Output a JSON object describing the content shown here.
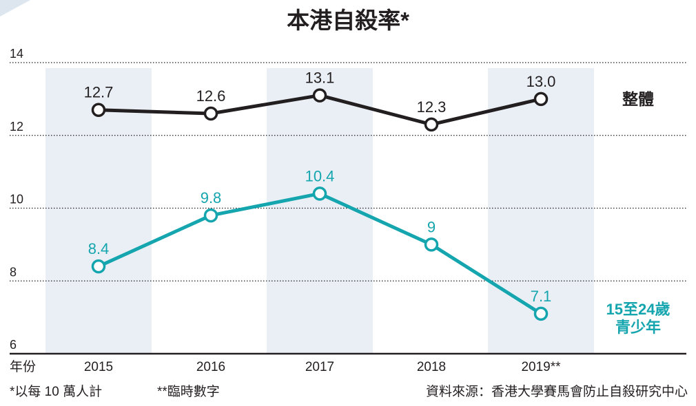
{
  "chart_data": {
    "type": "line",
    "title": "本港自殺率*",
    "categories": [
      "2015",
      "2016",
      "2017",
      "2018",
      "2019**"
    ],
    "xlabel": "年份",
    "ylabel": "",
    "ylim": [
      6,
      14
    ],
    "yticks": [
      "6",
      "8",
      "10",
      "12",
      "14"
    ],
    "grid": true,
    "series": [
      {
        "name": "整體",
        "values": [
          12.7,
          12.6,
          13.1,
          12.3,
          13.0
        ],
        "labels": [
          "12.7",
          "12.6",
          "13.1",
          "12.3",
          "13.0"
        ],
        "color": "#231f20"
      },
      {
        "name": "15至24歲\n青少年",
        "values": [
          8.4,
          9.8,
          10.4,
          9,
          7.1
        ],
        "labels": [
          "8.4",
          "9.8",
          "10.4",
          "9",
          "7.1"
        ],
        "color": "#14a5ae"
      }
    ]
  },
  "notes": {
    "per_capita": "*以每 10 萬人計",
    "provisional": "**臨時數字",
    "source": "資料來源：香港大學賽馬會防止自殺研究中心"
  },
  "colors": {
    "band": "#e9eff5",
    "axis": "#231f20",
    "grid": "#231f20",
    "corner": "#dde5ee"
  }
}
